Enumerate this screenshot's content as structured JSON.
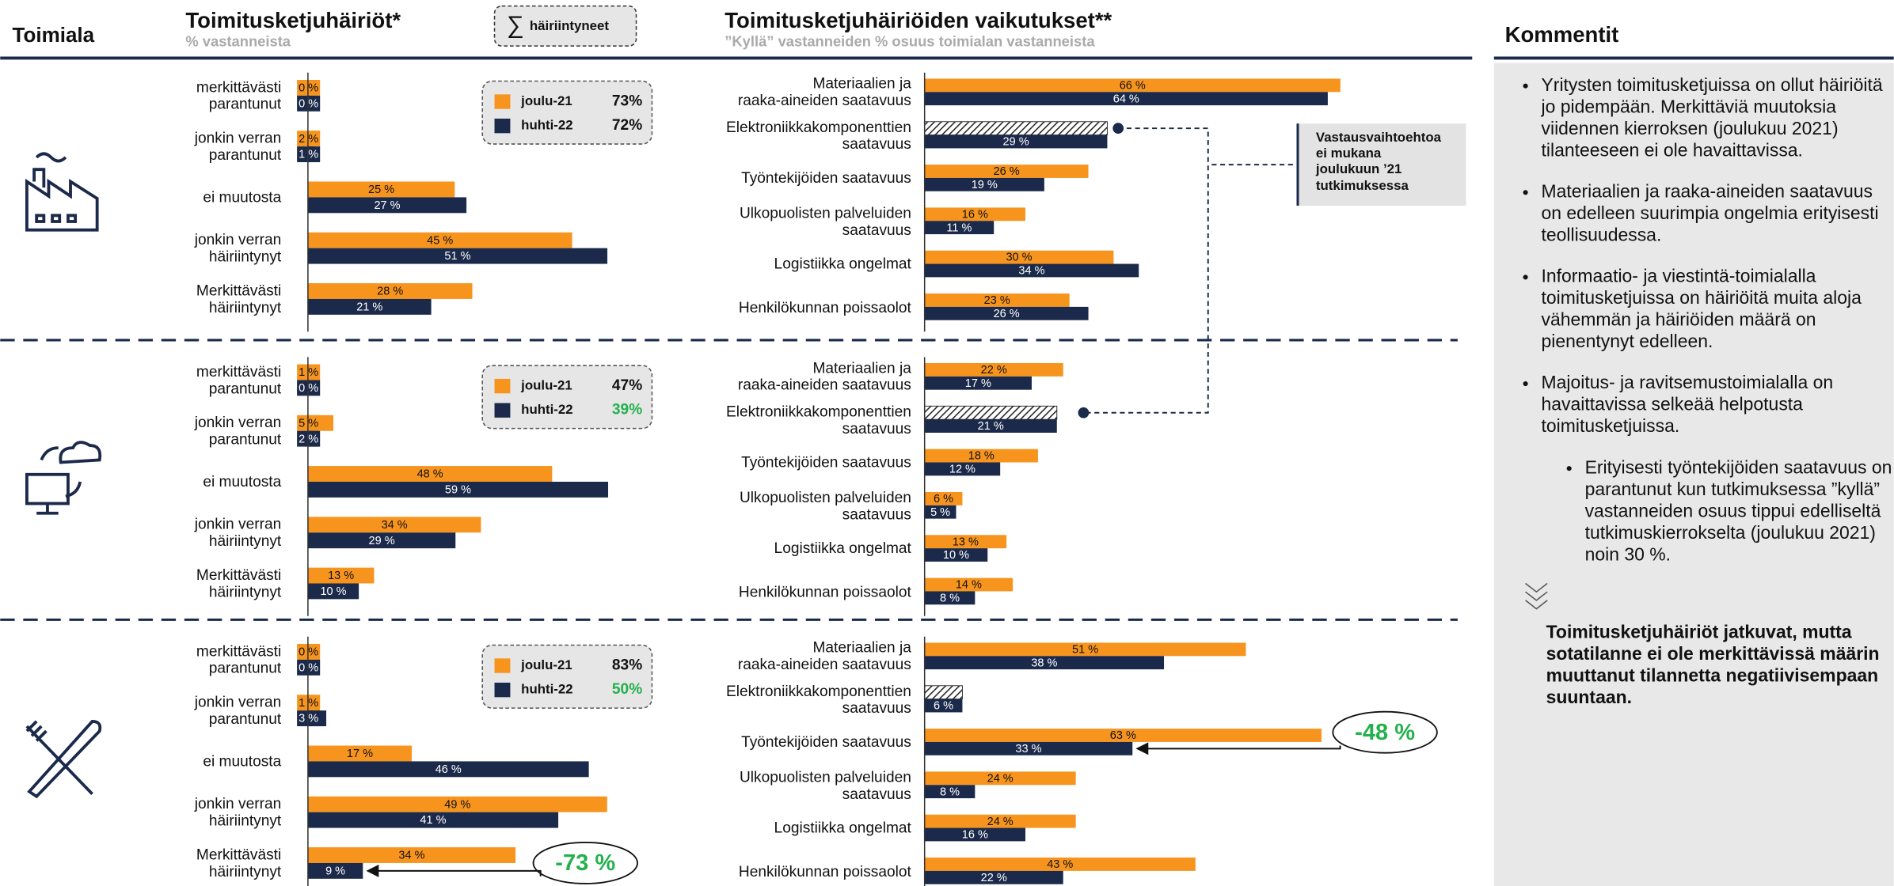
{
  "header": {
    "sector": "Toimiala",
    "sum_label": "häiriintyneet",
    "comments_title": "Kommentit",
    "note": "Vastausvaihtoehtoa\nei mukana\njoulukuun ’21\ntutkimuksessa"
  },
  "chart_data": [
    {
      "type": "bar",
      "title": "Toimitusketjuhäiriöt*",
      "subtitle": "% vastanneista",
      "categories": [
        "merkittävästi\nparantunut",
        "jonkin verran\nparantunut",
        "ei muutosta",
        "jonkin verran\nhäiriintynyt",
        "Merkittävästi\nhäiriintynyt"
      ],
      "xlim": [
        0,
        52
      ],
      "series": [
        {
          "name": "joulu-21",
          "color": "#f7941d",
          "values": [
            0,
            2,
            25,
            45,
            28
          ],
          "value_labels": [
            "0 %",
            "2 %",
            "25 %",
            "45 %",
            "28 %"
          ],
          "total": 73,
          "total_label": "73%",
          "total_color": "#111111"
        },
        {
          "name": "huhti-22",
          "color": "#1b2a4a",
          "values": [
            0,
            1,
            27,
            51,
            21
          ],
          "value_labels": [
            "0 %",
            "1 %",
            "27 %",
            "51 %",
            "21 %"
          ],
          "total": 72,
          "total_label": "72%",
          "total_color": "#111111"
        }
      ]
    },
    {
      "type": "bar",
      "title": "Toimitusketjuhäiriöiden vaikutukset**",
      "subtitle": "”Kyllä” vastanneiden % osuus toimialan vastanneista",
      "categories": [
        "Materiaalien ja\nraaka-aineiden saatavuus",
        "Elektroniikkakomponenttien\nsaatavuus",
        "Työntekijöiden saatavuus",
        "Ulkopuolisten palveluiden\nsaatavuus",
        "Logistiikka ongelmat",
        "Henkilökunnan poissaolot"
      ],
      "xlim": [
        0,
        70
      ],
      "series": [
        {
          "color": "#f7941d",
          "values": [
            66,
            null,
            26,
            16,
            30,
            23
          ],
          "value_labels": [
            "66 %",
            null,
            "26 %",
            "16 %",
            "30 %",
            "23 %"
          ]
        },
        {
          "color": "#1b2a4a",
          "values": [
            64,
            29,
            19,
            11,
            34,
            26
          ],
          "value_labels": [
            "64 %",
            "29 %",
            "19 %",
            "11 %",
            "34 %",
            "26 %"
          ]
        }
      ]
    },
    {
      "type": "bar",
      "categories": [
        "merkittävästi\nparantunut",
        "jonkin verran\nparantunut",
        "ei muutosta",
        "jonkin verran\nhäiriintynyt",
        "Merkittävästi\nhäiriintynyt"
      ],
      "xlim": [
        0,
        60
      ],
      "series": [
        {
          "name": "joulu-21",
          "color": "#f7941d",
          "values": [
            1,
            5,
            48,
            34,
            13
          ],
          "value_labels": [
            "1 %",
            "5 %",
            "48 %",
            "34 %",
            "13 %"
          ],
          "total": 47,
          "total_label": "47%",
          "total_color": "#111111"
        },
        {
          "name": "huhti-22",
          "color": "#1b2a4a",
          "values": [
            0,
            2,
            59,
            29,
            10
          ],
          "value_labels": [
            "0 %",
            "2 %",
            "59 %",
            "29 %",
            "10 %"
          ],
          "total": 39,
          "total_label": "39%",
          "total_color": "#22b14c"
        }
      ]
    },
    {
      "type": "bar",
      "categories": [
        "Materiaalien ja\nraaka-aineiden saatavuus",
        "Elektroniikkakomponenttien\nsaatavuus",
        "Työntekijöiden saatavuus",
        "Ulkopuolisten palveluiden\nsaatavuus",
        "Logistiikka ongelmat",
        "Henkilökunnan poissaolot"
      ],
      "xlim": [
        0,
        70
      ],
      "series": [
        {
          "color": "#f7941d",
          "values": [
            22,
            null,
            18,
            6,
            13,
            14
          ],
          "value_labels": [
            "22 %",
            null,
            "18 %",
            "6 %",
            "13 %",
            "14 %"
          ]
        },
        {
          "color": "#1b2a4a",
          "values": [
            17,
            21,
            12,
            5,
            10,
            8
          ],
          "value_labels": [
            "17 %",
            "21 %",
            "12 %",
            "5 %",
            "10 %",
            "8 %"
          ]
        }
      ]
    },
    {
      "type": "bar",
      "categories": [
        "merkittävästi\nparantunut",
        "jonkin verran\nparantunut",
        "ei muutosta",
        "jonkin verran\nhäiriintynyt",
        "Merkittävästi\nhäiriintynyt"
      ],
      "xlim": [
        0,
        50
      ],
      "annotation": "-73 %",
      "series": [
        {
          "name": "joulu-21",
          "color": "#f7941d",
          "values": [
            0,
            1,
            17,
            49,
            34
          ],
          "value_labels": [
            "0 %",
            "1 %",
            "17 %",
            "49 %",
            "34 %"
          ],
          "total": 83,
          "total_label": "83%",
          "total_color": "#111111"
        },
        {
          "name": "huhti-22",
          "color": "#1b2a4a",
          "values": [
            0,
            3,
            46,
            41,
            9
          ],
          "value_labels": [
            "0 %",
            "3 %",
            "46 %",
            "41 %",
            "9 %"
          ],
          "total": 50,
          "total_label": "50%",
          "total_color": "#22b14c"
        }
      ]
    },
    {
      "type": "bar",
      "categories": [
        "Materiaalien ja\nraaka-aineiden saatavuus",
        "Elektroniikkakomponenttien\nsaatavuus",
        "Työntekijöiden saatavuus",
        "Ulkopuolisten palveluiden\nsaatavuus",
        "Logistiikka ongelmat",
        "Henkilökunnan poissaolot"
      ],
      "xlim": [
        0,
        70
      ],
      "annotation": "-48 %",
      "series": [
        {
          "color": "#f7941d",
          "values": [
            51,
            null,
            63,
            24,
            24,
            43
          ],
          "value_labels": [
            "51 %",
            null,
            "63 %",
            "24 %",
            "24 %",
            "43 %"
          ]
        },
        {
          "color": "#1b2a4a",
          "values": [
            38,
            6,
            33,
            8,
            16,
            22
          ],
          "value_labels": [
            "38 %",
            "6 %",
            "33 %",
            "8 %",
            "16 %",
            "22 %"
          ]
        }
      ]
    }
  ],
  "comments": {
    "bullets": [
      "Yritysten toimitusketjuissa on ollut häiriöitä jo pidempään. Merkittäviä muutoksia viidennen kierroksen (joulukuu 2021) tilanteeseen ei ole havaittavissa.",
      "Materiaalien ja raaka-aineiden saatavuus on edelleen suurimpia ongelmia erityisesti teollisuudessa.",
      "Informaatio- ja viestintä-toimialalla toimitusketjuissa on häiriöitä muita aloja vähemmän ja häiriöiden määrä on pienentynyt edelleen.",
      "Majoitus- ja ravitsemustoimialalla on havaittavissa selkeää helpotusta toimitusketjuissa."
    ],
    "sub_bullet": "Erityisesti työntekijöiden saatavuus on parantunut kun tutkimuksessa ”kyllä” vastanneiden osuus tippui edelliseltä tutkimuskierrokselta (joulukuu 2021) noin 30 %.",
    "conclusion": "Toimitusketjuhäiriöt jatkuvat, mutta sotatilanne ei ole merkittävissä määrin muuttanut tilannetta negatiivisempaan suuntaan."
  }
}
